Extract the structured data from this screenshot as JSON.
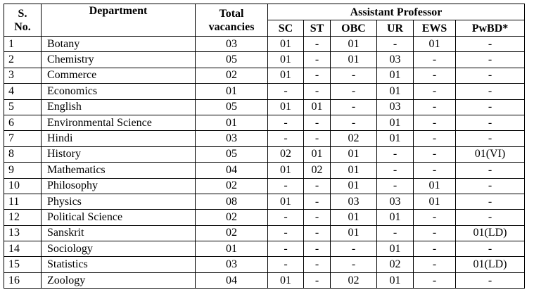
{
  "table": {
    "header": {
      "serial": "S. No.",
      "department": "Department",
      "total": "Total vacancies",
      "group": "Assistant Professor",
      "subcolumns": [
        "SC",
        "ST",
        "OBC",
        "UR",
        "EWS",
        "PwBD*"
      ]
    },
    "rows": [
      [
        "1",
        "Botany",
        "03",
        "01",
        "-",
        "01",
        "-",
        "01",
        "-"
      ],
      [
        "2",
        "Chemistry",
        "05",
        "01",
        "-",
        "01",
        "03",
        "-",
        "-"
      ],
      [
        "3",
        "Commerce",
        "02",
        "01",
        "-",
        "-",
        "01",
        "-",
        "-"
      ],
      [
        "4",
        "Economics",
        "01",
        "-",
        "-",
        "-",
        "01",
        "-",
        "-"
      ],
      [
        "5",
        "English",
        "05",
        "01",
        "01",
        "-",
        "03",
        "-",
        "-"
      ],
      [
        "6",
        "Environmental Science",
        "01",
        "-",
        "-",
        "-",
        "01",
        "-",
        "-"
      ],
      [
        "7",
        "Hindi",
        "03",
        "-",
        "-",
        "02",
        "01",
        "-",
        "-"
      ],
      [
        "8",
        "History",
        "05",
        "02",
        "01",
        "01",
        "-",
        "-",
        "01(VI)"
      ],
      [
        "9",
        "Mathematics",
        "04",
        "01",
        "02",
        "01",
        "-",
        "-",
        "-"
      ],
      [
        "10",
        "Philosophy",
        "02",
        "-",
        "-",
        "01",
        "-",
        "01",
        "-"
      ],
      [
        "11",
        "Physics",
        "08",
        "01",
        "-",
        "03",
        "03",
        "01",
        "-"
      ],
      [
        "12",
        "Political Science",
        "02",
        "-",
        "-",
        "01",
        "01",
        "-",
        "-"
      ],
      [
        "13",
        "Sanskrit",
        "02",
        "-",
        "-",
        "01",
        "-",
        "-",
        "01(LD)"
      ],
      [
        "14",
        "Sociology",
        "01",
        "-",
        "-",
        "-",
        "01",
        "-",
        "-"
      ],
      [
        "15",
        "Statistics",
        "03",
        "-",
        "-",
        "-",
        "02",
        "-",
        "01(LD)"
      ],
      [
        "16",
        "Zoology",
        "04",
        "01",
        "-",
        "02",
        "01",
        "-",
        "-"
      ]
    ]
  }
}
